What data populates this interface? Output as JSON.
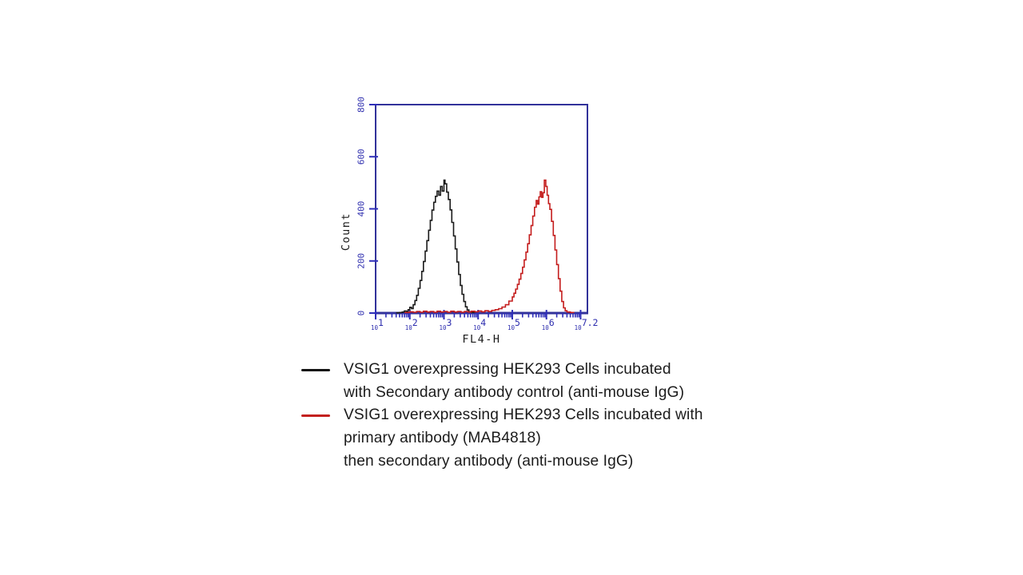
{
  "figure": {
    "background": "#ffffff"
  },
  "chart_data": {
    "type": "line",
    "subtype": "flow-cytometry-histogram",
    "title": "",
    "xlabel": "FL4-H",
    "ylabel": "Count",
    "x_scale": "log10",
    "x_log_range": [
      1,
      7.2
    ],
    "ylim": [
      0,
      800
    ],
    "y_ticks": [
      0,
      200,
      400,
      600,
      800
    ],
    "x_major_ticks_log": [
      1,
      2,
      3,
      4,
      5,
      6,
      7
    ],
    "x_tick_labels": [
      {
        "log": 1.0,
        "base": "10",
        "exp": "1"
      },
      {
        "log": 2.0,
        "base": "10",
        "exp": "2"
      },
      {
        "log": 3.0,
        "base": "10",
        "exp": "3"
      },
      {
        "log": 4.0,
        "base": "10",
        "exp": "4"
      },
      {
        "log": 5.0,
        "base": "10",
        "exp": "5"
      },
      {
        "log": 6.0,
        "base": "10",
        "exp": "6"
      },
      {
        "log": 7.12,
        "base": "10",
        "exp": "7.2"
      }
    ],
    "grid": false,
    "legend_position": "below",
    "axis_color": "#32329a",
    "tick_color": "#2e2eb8",
    "tick_label_color": "#2d2dae",
    "axis_title_color": "#1a1a1a",
    "series": [
      {
        "name": "Secondary antibody control (anti-mouse IgG)",
        "color": "#1a1a1a",
        "peak_log_x": 3.0,
        "peak_count": 510,
        "points_log_count": [
          [
            1.6,
            1
          ],
          [
            1.7,
            2
          ],
          [
            1.78,
            4
          ],
          [
            1.84,
            8
          ],
          [
            1.9,
            6
          ],
          [
            1.95,
            13
          ],
          [
            2.0,
            22
          ],
          [
            2.05,
            17
          ],
          [
            2.1,
            32
          ],
          [
            2.15,
            48
          ],
          [
            2.2,
            68
          ],
          [
            2.25,
            95
          ],
          [
            2.3,
            125
          ],
          [
            2.35,
            160
          ],
          [
            2.4,
            198
          ],
          [
            2.45,
            238
          ],
          [
            2.5,
            278
          ],
          [
            2.55,
            318
          ],
          [
            2.6,
            356
          ],
          [
            2.65,
            395
          ],
          [
            2.7,
            425
          ],
          [
            2.75,
            448
          ],
          [
            2.8,
            468
          ],
          [
            2.85,
            452
          ],
          [
            2.9,
            486
          ],
          [
            2.95,
            468
          ],
          [
            3.0,
            510
          ],
          [
            3.03,
            496
          ],
          [
            3.08,
            464
          ],
          [
            3.13,
            436
          ],
          [
            3.18,
            396
          ],
          [
            3.23,
            348
          ],
          [
            3.28,
            296
          ],
          [
            3.33,
            246
          ],
          [
            3.38,
            196
          ],
          [
            3.43,
            148
          ],
          [
            3.48,
            106
          ],
          [
            3.53,
            72
          ],
          [
            3.58,
            44
          ],
          [
            3.63,
            24
          ],
          [
            3.68,
            12
          ],
          [
            3.73,
            5
          ],
          [
            3.8,
            2
          ],
          [
            3.9,
            1
          ]
        ]
      },
      {
        "name": "primary antibody (MAB4818) then secondary antibody (anti-mouse IgG)",
        "color": "#c41d1d",
        "peak_log_x": 5.94,
        "peak_count": 510,
        "points_log_count": [
          [
            1.85,
            2
          ],
          [
            2.0,
            5
          ],
          [
            2.1,
            3
          ],
          [
            2.2,
            6
          ],
          [
            2.3,
            3
          ],
          [
            2.4,
            7
          ],
          [
            2.5,
            4
          ],
          [
            2.6,
            6
          ],
          [
            2.7,
            3
          ],
          [
            2.8,
            7
          ],
          [
            2.9,
            4
          ],
          [
            3.0,
            6
          ],
          [
            3.1,
            3
          ],
          [
            3.2,
            7
          ],
          [
            3.3,
            4
          ],
          [
            3.4,
            6
          ],
          [
            3.5,
            3
          ],
          [
            3.6,
            6
          ],
          [
            3.7,
            4
          ],
          [
            3.8,
            7
          ],
          [
            3.9,
            5
          ],
          [
            4.0,
            8
          ],
          [
            4.1,
            5
          ],
          [
            4.2,
            9
          ],
          [
            4.3,
            6
          ],
          [
            4.4,
            10
          ],
          [
            4.5,
            13
          ],
          [
            4.6,
            17
          ],
          [
            4.7,
            23
          ],
          [
            4.8,
            32
          ],
          [
            4.9,
            46
          ],
          [
            5.0,
            62
          ],
          [
            5.05,
            76
          ],
          [
            5.1,
            92
          ],
          [
            5.15,
            110
          ],
          [
            5.2,
            130
          ],
          [
            5.25,
            152
          ],
          [
            5.3,
            176
          ],
          [
            5.35,
            204
          ],
          [
            5.4,
            234
          ],
          [
            5.45,
            266
          ],
          [
            5.5,
            300
          ],
          [
            5.55,
            336
          ],
          [
            5.6,
            372
          ],
          [
            5.65,
            406
          ],
          [
            5.7,
            432
          ],
          [
            5.74,
            418
          ],
          [
            5.78,
            446
          ],
          [
            5.82,
            466
          ],
          [
            5.86,
            444
          ],
          [
            5.9,
            462
          ],
          [
            5.94,
            510
          ],
          [
            5.98,
            486
          ],
          [
            6.02,
            452
          ],
          [
            6.06,
            420
          ],
          [
            6.1,
            398
          ],
          [
            6.15,
            352
          ],
          [
            6.2,
            298
          ],
          [
            6.25,
            242
          ],
          [
            6.3,
            186
          ],
          [
            6.35,
            132
          ],
          [
            6.4,
            84
          ],
          [
            6.45,
            44
          ],
          [
            6.5,
            20
          ],
          [
            6.55,
            9
          ],
          [
            6.6,
            4
          ],
          [
            6.7,
            2
          ],
          [
            6.8,
            1
          ]
        ]
      }
    ]
  },
  "legend": {
    "entries": [
      {
        "swatch_color": "#111111",
        "lines": [
          "VSIG1 overexpressing HEK293 Cells incubated",
          "with Secondary antibody control (anti-mouse IgG)"
        ]
      },
      {
        "swatch_color": "#c3201e",
        "lines": [
          "VSIG1 overexpressing HEK293 Cells incubated with",
          "primary antibody (MAB4818)",
          "then secondary antibody (anti-mouse IgG)"
        ]
      }
    ]
  }
}
